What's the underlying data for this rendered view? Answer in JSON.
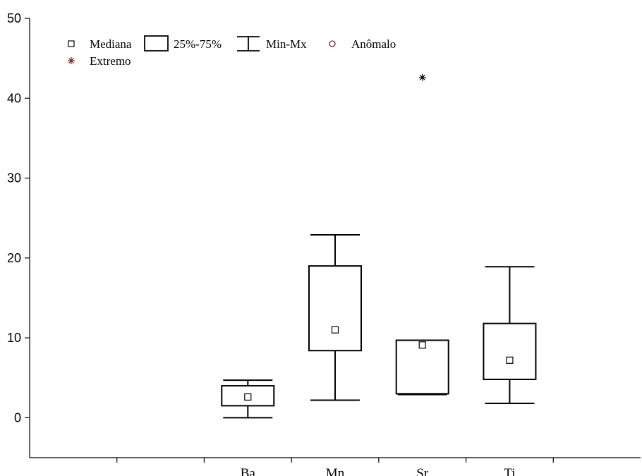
{
  "chart_data": {
    "type": "box",
    "ylim": [
      -5,
      50
    ],
    "yticks": [
      0,
      10,
      20,
      30,
      40,
      50
    ],
    "categories": [
      "Ba",
      "Mn",
      "Sr",
      "Ti"
    ],
    "xslots": 7,
    "boxes": [
      {
        "category": "Ba",
        "min": 0.0,
        "q1": 1.5,
        "median": 2.6,
        "q3": 4.0,
        "max": 4.7
      },
      {
        "category": "Mn",
        "min": 2.2,
        "q1": 8.4,
        "median": 11.0,
        "q3": 19.0,
        "max": 22.9
      },
      {
        "category": "Sr",
        "min": 2.9,
        "q1": 3.0,
        "median": 9.1,
        "q3": 9.7,
        "max": 9.7,
        "extremes": [
          42.6
        ]
      },
      {
        "category": "Ti",
        "min": 1.8,
        "q1": 4.8,
        "median": 7.2,
        "q3": 11.8,
        "max": 18.9
      }
    ],
    "legend": {
      "placement": "top-left",
      "items": [
        {
          "symbol": "median-square",
          "label": "Mediana"
        },
        {
          "symbol": "box",
          "label": "25%-75%"
        },
        {
          "symbol": "whisker",
          "label": "Min-Mx"
        },
        {
          "symbol": "outlier-circle",
          "label": "Anômalo"
        },
        {
          "symbol": "extreme-star",
          "label": "Extremo"
        }
      ]
    },
    "colors": {
      "axis": "#000000",
      "outlier": "#8b1a1a",
      "extreme_legend": "#8b1a1a",
      "extreme_point": "#000000"
    },
    "grid": false
  }
}
